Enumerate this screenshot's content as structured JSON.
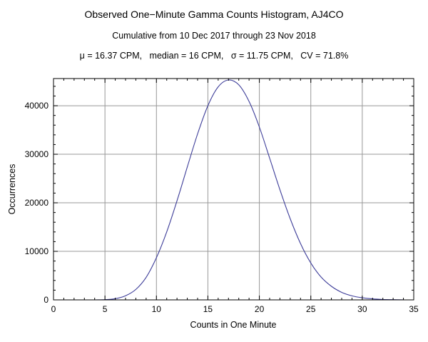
{
  "header": {
    "title": "Observed One−Minute Gamma Counts Histogram, AJ4CO",
    "subtitle": "Cumulative from 10 Dec 2017 through 23 Nov 2018",
    "stats": "μ = 16.37 CPM,   median = 16 CPM,   σ = 11.75 CPM,   CV = 71.8%"
  },
  "chart_data": {
    "type": "line",
    "title": "Observed One−Minute Gamma Counts Histogram, AJ4CO",
    "subtitle": "Cumulative from 10 Dec 2017 through 23 Nov 2018",
    "stats_line": "μ = 16.37 CPM, median = 16 CPM, σ = 11.75 CPM, CV = 71.8%",
    "xlabel": "Counts in One Minute",
    "ylabel": "Occurrences",
    "xlim": [
      0,
      35
    ],
    "ylim": [
      0,
      45600
    ],
    "xticks": [
      0,
      5,
      10,
      15,
      20,
      25,
      30,
      35
    ],
    "yticks": [
      0,
      10000,
      20000,
      30000,
      40000
    ],
    "ytick_labels": [
      "0",
      "10000",
      "20000",
      "30000",
      "40000"
    ],
    "x_minor_step": 1,
    "y_minor_step": 2000,
    "grid": true,
    "grid_color": "#989898",
    "line_color": "#3d3d99",
    "frame_color": "#000000",
    "x": [
      3,
      4,
      5,
      6,
      7,
      8,
      9,
      10,
      11,
      12,
      13,
      14,
      15,
      16,
      17,
      18,
      19,
      20,
      21,
      22,
      23,
      24,
      25,
      26,
      27,
      28,
      29,
      30,
      31,
      32,
      33,
      34
    ],
    "y": [
      0,
      5,
      40,
      250,
      850,
      2150,
      4650,
      8700,
      14000,
      20400,
      27400,
      34200,
      40000,
      43900,
      45300,
      44300,
      40900,
      35600,
      29200,
      22700,
      16700,
      11600,
      7600,
      4700,
      2800,
      1550,
      820,
      420,
      200,
      90,
      40,
      15
    ]
  }
}
